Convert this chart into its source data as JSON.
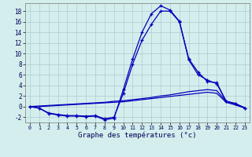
{
  "xlabel": "Graphe des températures (°c)",
  "background_color": "#d4eeee",
  "grid_color": "#aacccc",
  "line_color": "#0000bb",
  "xlim": [
    -0.5,
    23.5
  ],
  "ylim": [
    -3.0,
    19.5
  ],
  "yticks": [
    -2,
    0,
    2,
    4,
    6,
    8,
    10,
    12,
    14,
    16,
    18
  ],
  "xticks": [
    0,
    1,
    2,
    3,
    4,
    5,
    6,
    7,
    8,
    9,
    10,
    11,
    12,
    13,
    14,
    15,
    16,
    17,
    18,
    19,
    20,
    21,
    22,
    23
  ],
  "hours": [
    0,
    1,
    2,
    3,
    4,
    5,
    6,
    7,
    8,
    9,
    10,
    11,
    12,
    13,
    14,
    15,
    16,
    17,
    18,
    19,
    20,
    21,
    22,
    23
  ],
  "line_main": [
    0.0,
    -0.3,
    -1.3,
    -1.6,
    -1.8,
    -1.8,
    -1.9,
    -1.8,
    -2.5,
    -2.2,
    3.2,
    9.0,
    14.0,
    17.5,
    19.0,
    18.2,
    16.1,
    9.0,
    6.5,
    4.7,
    4.5,
    1.0,
    0.6,
    -0.3
  ],
  "line_second": [
    0.0,
    -0.3,
    -1.2,
    -1.5,
    -1.7,
    -1.7,
    -1.8,
    -1.7,
    -2.3,
    -2.0,
    2.5,
    8.0,
    12.5,
    15.5,
    18.0,
    18.0,
    16.0,
    8.8,
    6.0,
    5.0,
    4.3,
    1.0,
    0.5,
    -0.3
  ],
  "line_diag1": [
    0.0,
    0.1,
    0.2,
    0.3,
    0.4,
    0.5,
    0.6,
    0.7,
    0.8,
    1.0,
    1.1,
    1.3,
    1.5,
    1.7,
    2.0,
    2.2,
    2.5,
    2.8,
    3.0,
    3.2,
    3.0,
    1.0,
    0.5,
    -0.2
  ],
  "line_diag2": [
    0.0,
    0.0,
    0.1,
    0.2,
    0.3,
    0.4,
    0.5,
    0.6,
    0.7,
    0.8,
    0.9,
    1.1,
    1.3,
    1.5,
    1.7,
    1.9,
    2.1,
    2.3,
    2.5,
    2.7,
    2.5,
    0.8,
    0.3,
    -0.3
  ]
}
